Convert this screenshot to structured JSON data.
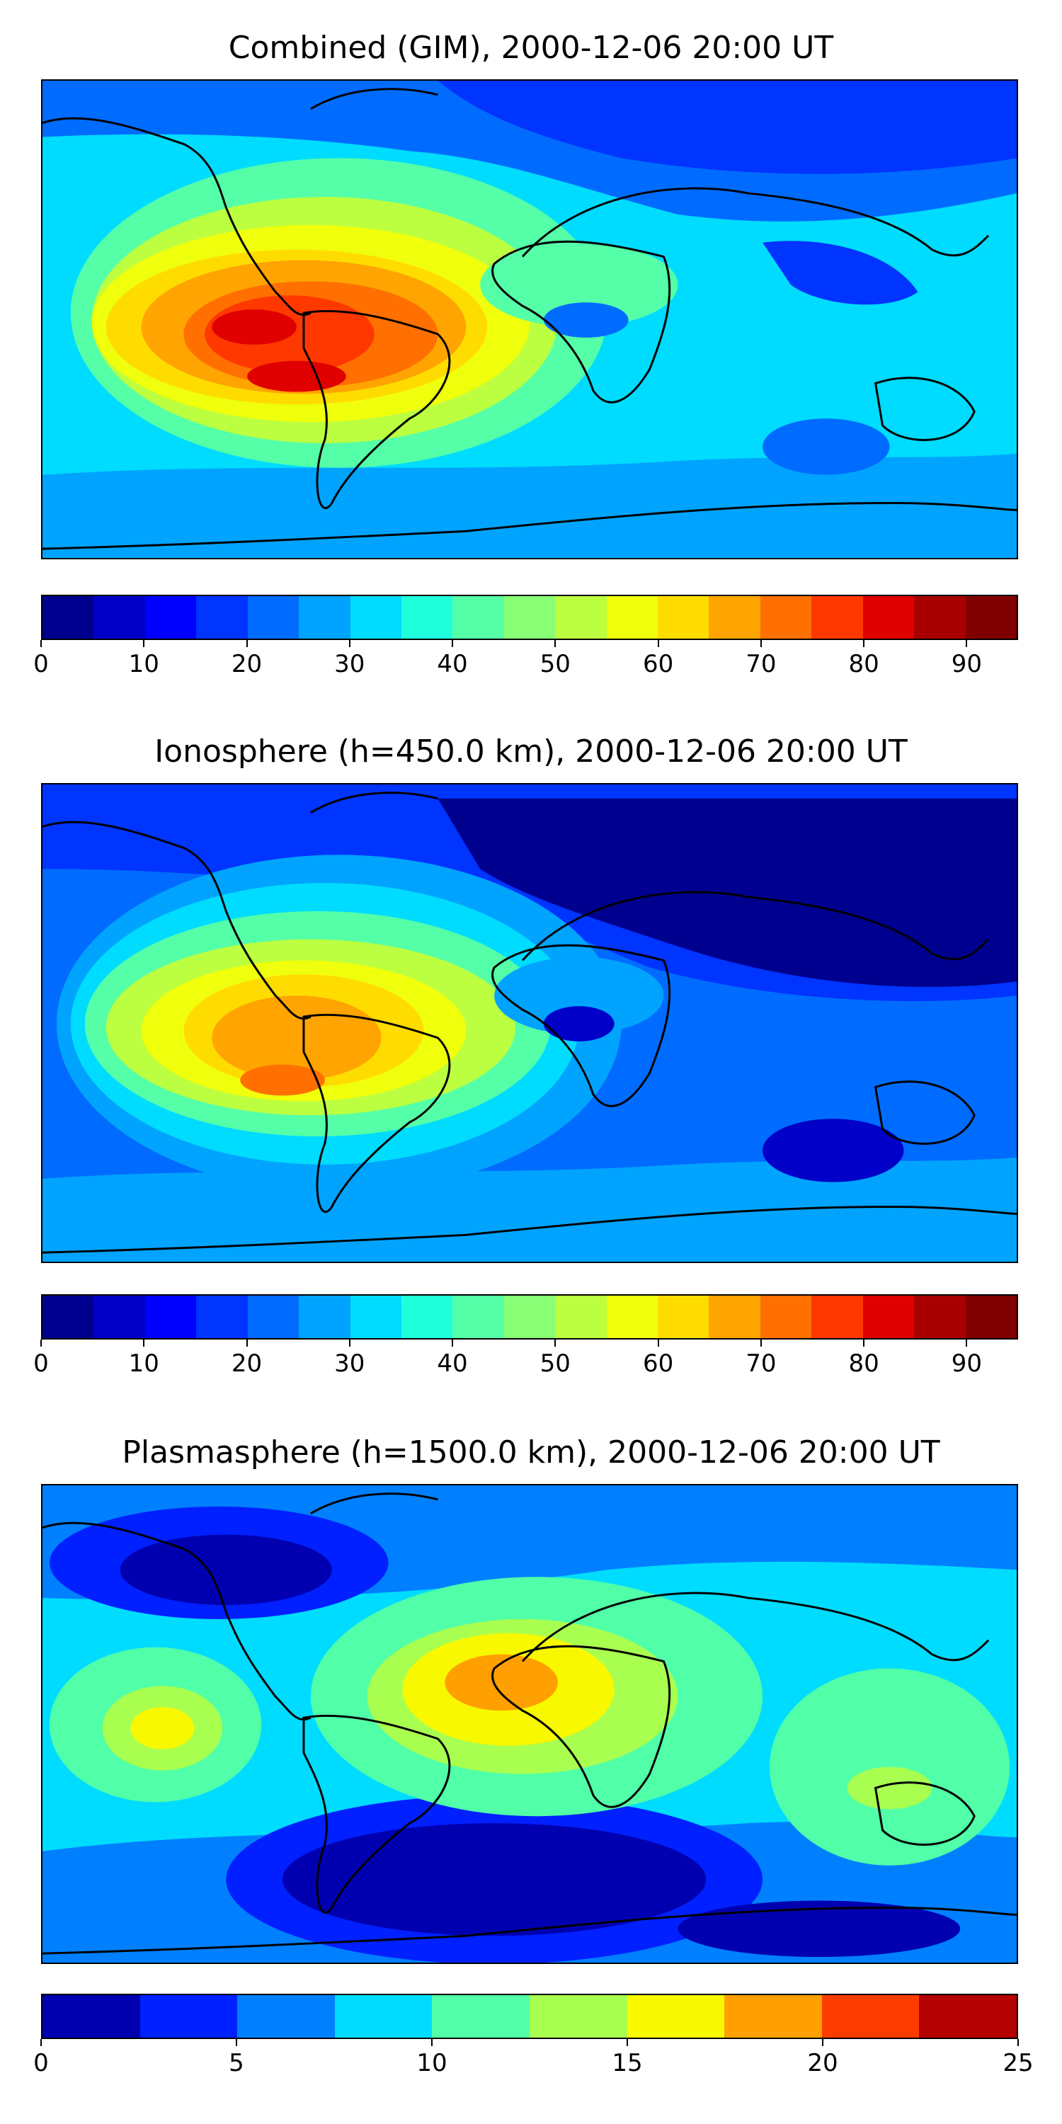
{
  "panels": [
    {
      "title": "Combined (GIM), 2000-12-06 20:00 UT",
      "colorbar": {
        "colors": [
          "#00008f",
          "#0000c8",
          "#0000ff",
          "#0034ff",
          "#006cff",
          "#00a4ff",
          "#00dcff",
          "#20ffdc",
          "#54ffa8",
          "#88ff74",
          "#bcff40",
          "#f0ff0c",
          "#ffdc00",
          "#ffa400",
          "#ff7000",
          "#ff3800",
          "#e00000",
          "#a80000",
          "#800000"
        ],
        "min": 0,
        "max": 95,
        "ticks": [
          0,
          10,
          20,
          30,
          40,
          50,
          60,
          70,
          80,
          90
        ]
      }
    },
    {
      "title": "Ionosphere  (h=450.0 km), 2000-12-06 20:00 UT",
      "colorbar": {
        "colors": [
          "#00008f",
          "#0000c8",
          "#0000ff",
          "#0034ff",
          "#006cff",
          "#00a4ff",
          "#00dcff",
          "#20ffdc",
          "#54ffa8",
          "#88ff74",
          "#bcff40",
          "#f0ff0c",
          "#ffdc00",
          "#ffa400",
          "#ff7000",
          "#ff3800",
          "#e00000",
          "#a80000",
          "#800000"
        ],
        "min": 0,
        "max": 95,
        "ticks": [
          0,
          10,
          20,
          30,
          40,
          50,
          60,
          70,
          80,
          90
        ]
      }
    },
    {
      "title": "Plasmasphere (h=1500.0 km), 2000-12-06 20:00 UT",
      "colorbar": {
        "colors": [
          "#0000b0",
          "#0020ff",
          "#0080ff",
          "#00dcff",
          "#50ffa8",
          "#a8ff50",
          "#f8f800",
          "#ffa000",
          "#ff3c00",
          "#b40000"
        ],
        "min": 0,
        "max": 25,
        "ticks": [
          0,
          5,
          10,
          15,
          20,
          25
        ]
      }
    }
  ]
}
